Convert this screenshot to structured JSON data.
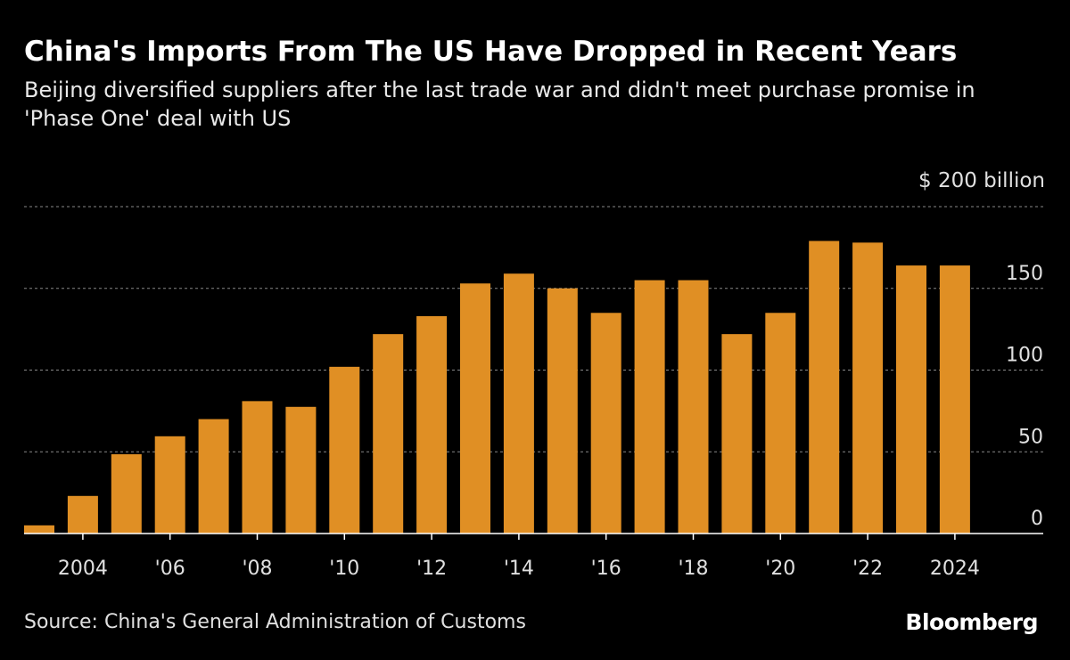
{
  "chart_data": {
    "type": "bar",
    "title": "China's Imports From The US Have Dropped in Recent Years",
    "subtitle": "Beijing diversified suppliers after the last trade war and didn't meet purchase promise in 'Phase One' deal with US",
    "unit_label": "$ 200 billion",
    "categories": [
      2003,
      2004,
      2005,
      2006,
      2007,
      2008,
      2009,
      2010,
      2011,
      2012,
      2013,
      2014,
      2015,
      2016,
      2017,
      2018,
      2019,
      2020,
      2021,
      2022,
      2023,
      2024
    ],
    "values": [
      5,
      23,
      48.5,
      59.5,
      70,
      81,
      77.5,
      102,
      122,
      133,
      153,
      159,
      150,
      135,
      155,
      155,
      122,
      135,
      179,
      178,
      164,
      164
    ],
    "x_tick_labels": [
      {
        "year": 2004,
        "label": "2004"
      },
      {
        "year": 2006,
        "label": "'06"
      },
      {
        "year": 2008,
        "label": "'08"
      },
      {
        "year": 2010,
        "label": "'10"
      },
      {
        "year": 2012,
        "label": "'12"
      },
      {
        "year": 2014,
        "label": "'14"
      },
      {
        "year": 2016,
        "label": "'16"
      },
      {
        "year": 2018,
        "label": "'18"
      },
      {
        "year": 2020,
        "label": "'20"
      },
      {
        "year": 2022,
        "label": "'22"
      },
      {
        "year": 2024,
        "label": "2024"
      }
    ],
    "y_ticks": [
      {
        "value": 0,
        "label": "0"
      },
      {
        "value": 50,
        "label": "50"
      },
      {
        "value": 100,
        "label": "100"
      },
      {
        "value": 150,
        "label": "150"
      }
    ],
    "ylim": [
      0,
      200
    ],
    "grid": true,
    "bar_color": "#E08F24",
    "source": "Source: China's General Administration of Customs",
    "logo": "Bloomberg"
  }
}
